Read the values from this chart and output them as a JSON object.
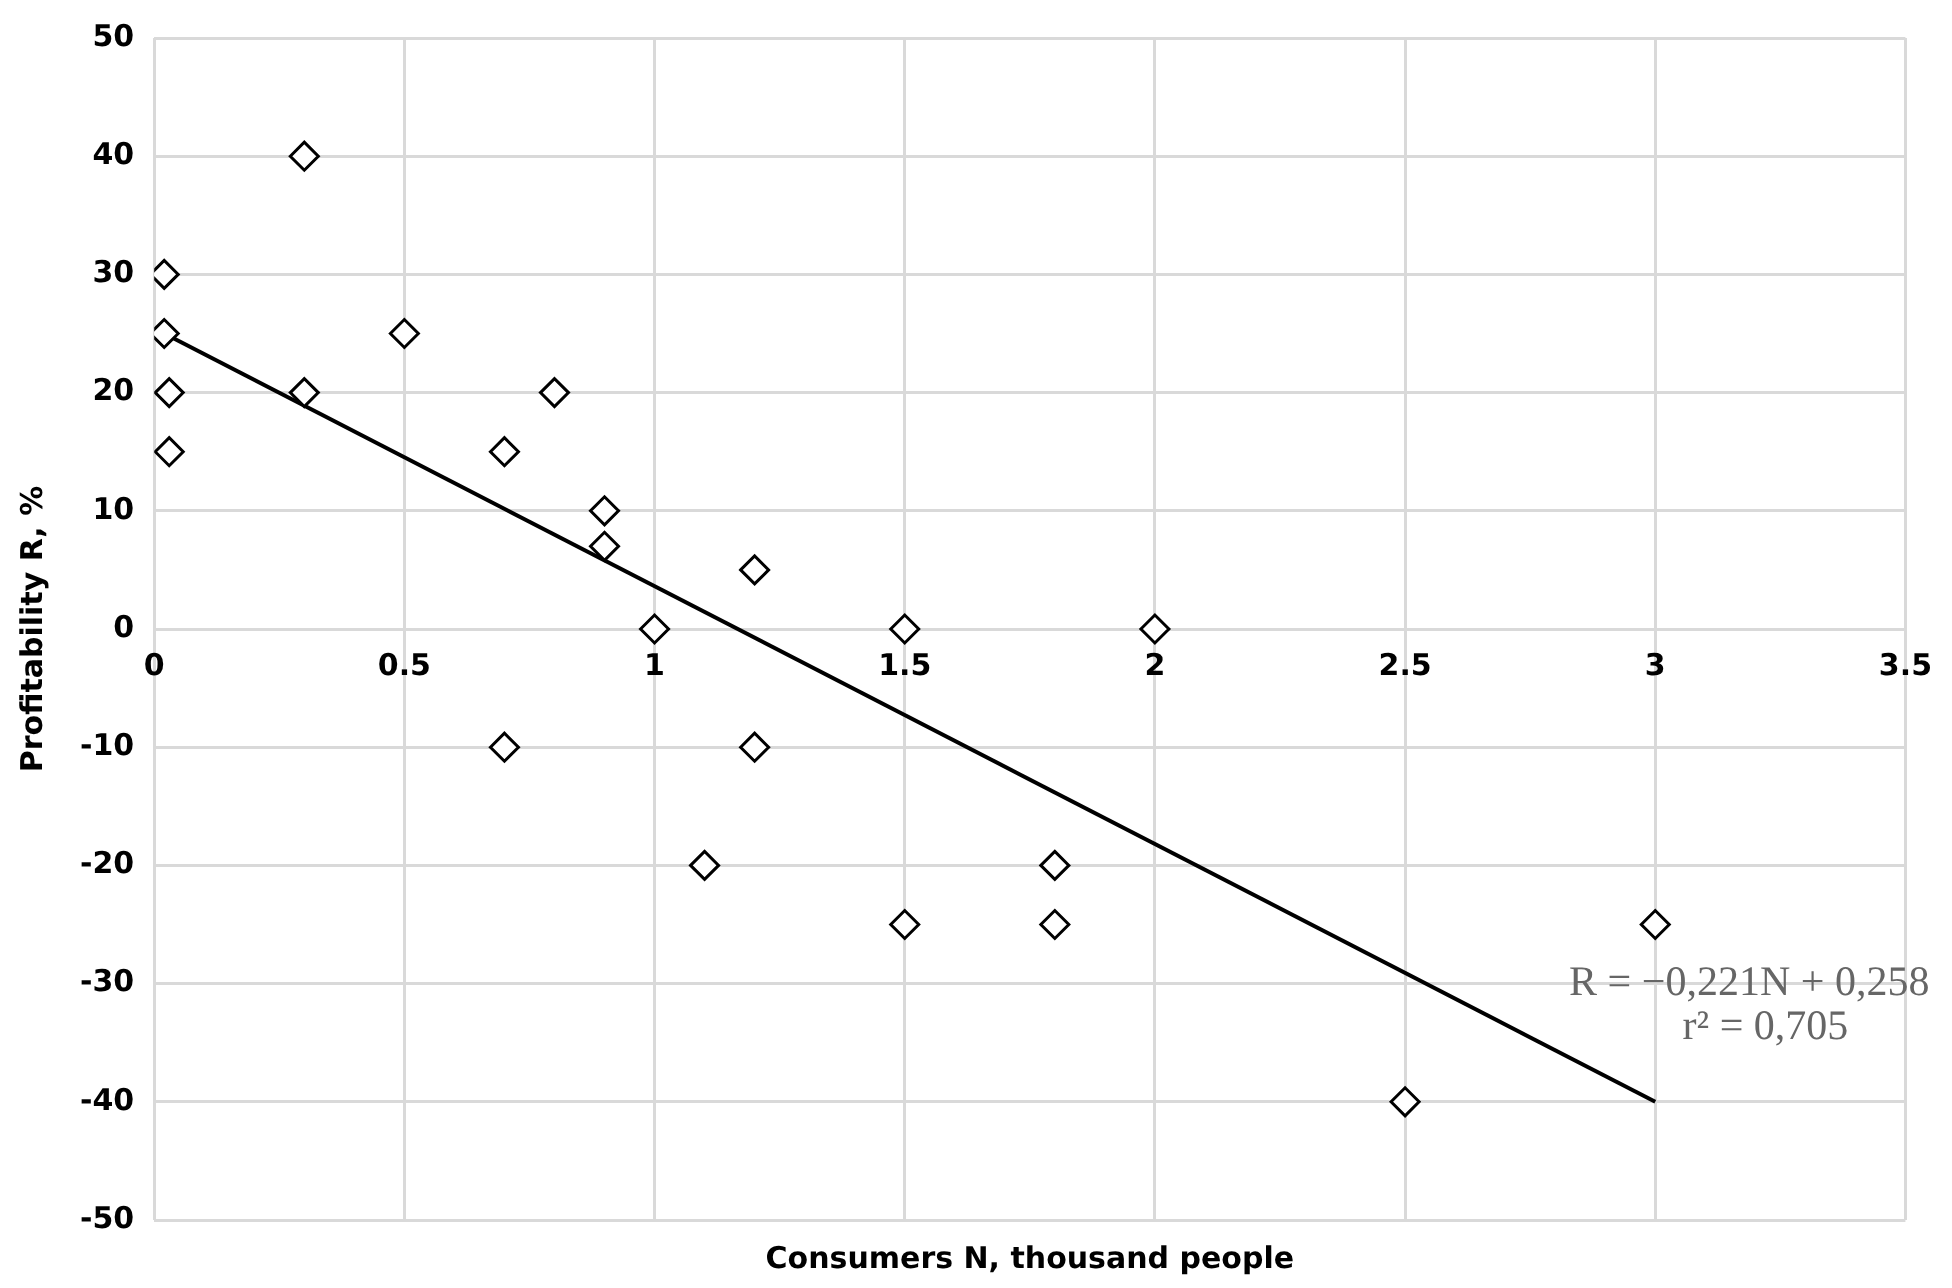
{
  "chart_data": {
    "type": "scatter",
    "xlabel": "Consumers N, thousand people",
    "ylabel": "Profitability R, %",
    "xlim": [
      0,
      3.5
    ],
    "xticks": [
      0,
      0.5,
      1,
      1.5,
      2,
      2.5,
      3,
      3.5
    ],
    "ylim": [
      -50,
      50
    ],
    "yticks": [
      -50,
      -40,
      -30,
      -20,
      -10,
      0,
      10,
      20,
      30,
      40,
      50
    ],
    "grid": true,
    "legend": false,
    "marker": "diamond",
    "series": [
      {
        "type": "scatter",
        "color": "#000000",
        "x": [
          0.02,
          0.02,
          0.03,
          0.03,
          0.3,
          0.3,
          0.5,
          0.7,
          0.8,
          0.9,
          0.9,
          1.0,
          1.2,
          0.7,
          1.2,
          1.1,
          1.5,
          2.0,
          1.5,
          1.8,
          1.8,
          2.5,
          3.0
        ],
        "values": [
          30,
          25,
          20,
          15,
          40,
          20,
          25,
          15,
          20,
          10,
          7,
          0,
          5,
          -10,
          -10,
          -20,
          0,
          0,
          -25,
          -20,
          -25,
          -40,
          -25
        ]
      },
      {
        "type": "line",
        "color": "#000000",
        "marker": "none",
        "x": [
          0.02,
          3
        ],
        "values": [
          25,
          -40
        ]
      }
    ],
    "annotations": [
      "R = −0,221N + 0,258",
      "r² = 0,705"
    ]
  }
}
